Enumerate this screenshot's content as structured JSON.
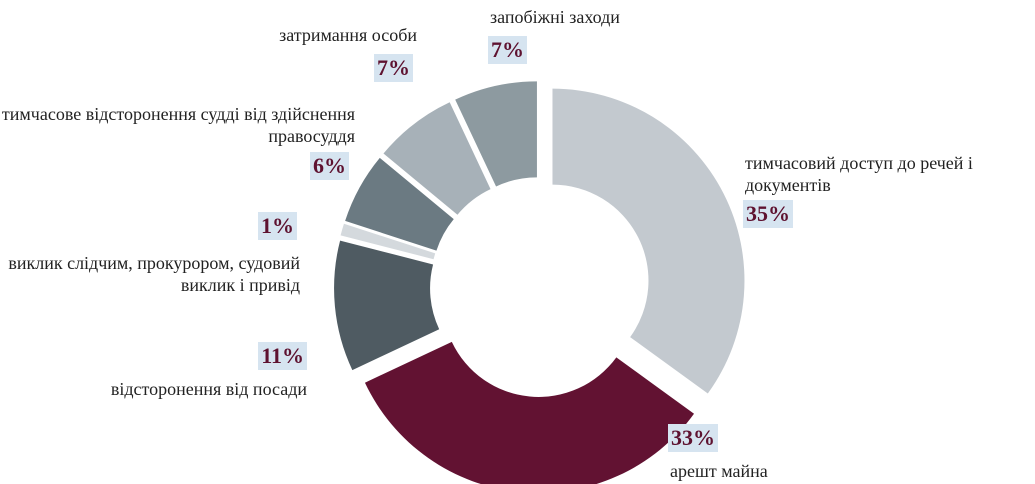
{
  "chart_data": {
    "type": "donut",
    "categories": [
      "тимчасовий доступ до речей і документів",
      "арешт майна",
      "відсторонення від посади",
      "виклик слідчим, прокурором, судовий виклик і привід",
      "тимчасове відсторонення судді від здійснення правосуддя",
      "затримання особи",
      "запобіжні заходи"
    ],
    "values": [
      35,
      33,
      11,
      1,
      6,
      7,
      7
    ],
    "value_labels": [
      "35%",
      "33%",
      "11%",
      "1%",
      "6%",
      "7%",
      "7%"
    ],
    "colors": [
      "#c3c9cf",
      "#621232",
      "#4f5b62",
      "#d4d9dd",
      "#6b7a82",
      "#a7b1b8",
      "#8d9aa0"
    ]
  }
}
